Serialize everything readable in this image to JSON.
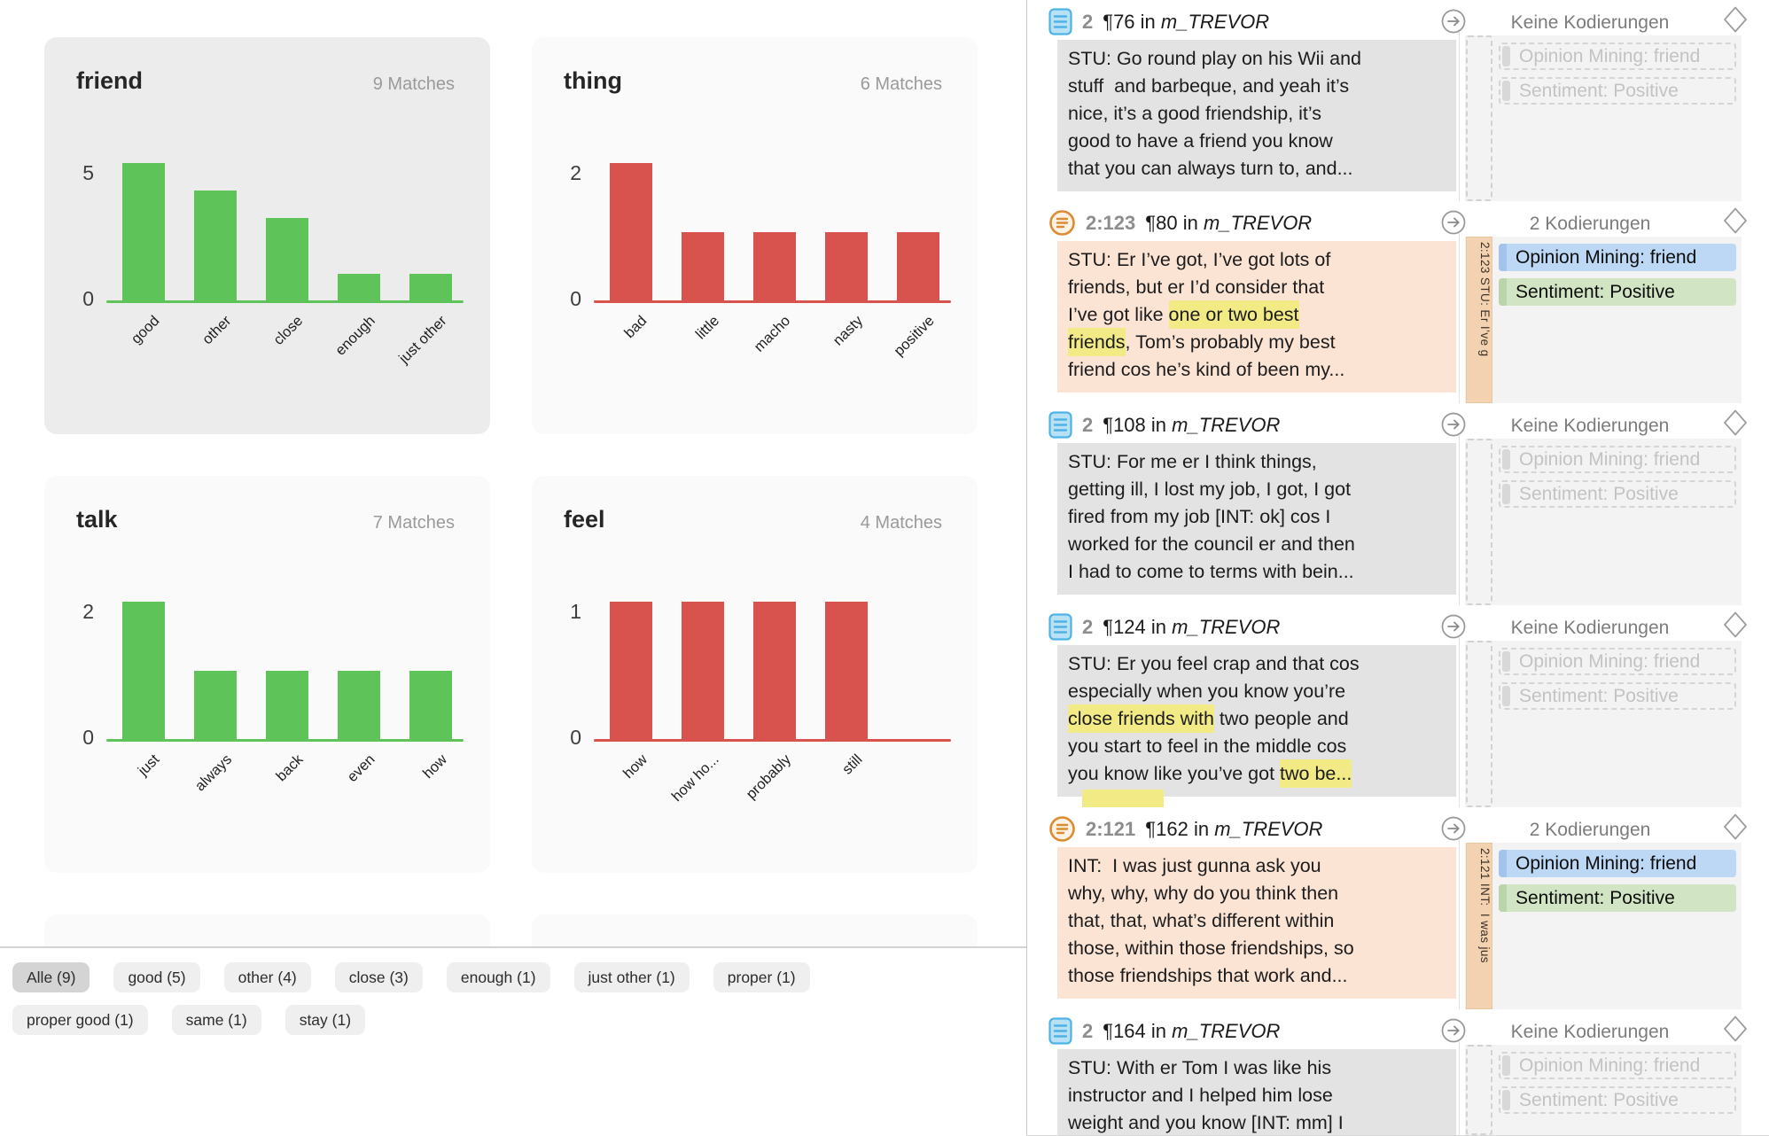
{
  "colors": {
    "green": "#5ec45a",
    "red": "#d9534e",
    "selected_card_bg": "#ececec",
    "card_bg": "#fafafa",
    "highlight_yellow": "#f2ea84",
    "text_block_gray": "#e3e3e3",
    "text_block_peach": "#fbe4d3",
    "code_blue": "#bdd8f4",
    "code_green": "#d1e4c3",
    "strip_tan": "#f3d2b1"
  },
  "chart_data": {
    "type": "bar",
    "legend": "none",
    "grid": false,
    "charts": [
      {
        "title": "friend",
        "matches_label": "9 Matches",
        "color": "green",
        "selected": true,
        "categories": [
          "good",
          "other",
          "close",
          "enough",
          "just other"
        ],
        "values": [
          5,
          4,
          3,
          1,
          1
        ],
        "ylim": [
          0,
          5
        ],
        "yticks": [
          "5",
          "0"
        ]
      },
      {
        "title": "thing",
        "matches_label": "6 Matches",
        "color": "red",
        "selected": false,
        "categories": [
          "bad",
          "little",
          "macho",
          "nasty",
          "positive"
        ],
        "values": [
          2,
          1,
          1,
          1,
          1
        ],
        "ylim": [
          0,
          2
        ],
        "yticks": [
          "2",
          "0"
        ]
      },
      {
        "title": "talk",
        "matches_label": "7 Matches",
        "color": "green",
        "selected": false,
        "categories": [
          "just",
          "always",
          "back",
          "even",
          "how"
        ],
        "values": [
          2,
          1,
          1,
          1,
          1
        ],
        "ylim": [
          0,
          2
        ],
        "yticks": [
          "2",
          "0"
        ]
      },
      {
        "title": "feel",
        "matches_label": "4 Matches",
        "color": "red",
        "selected": false,
        "categories": [
          "how",
          "how ho...",
          "probably",
          "still"
        ],
        "values": [
          1,
          1,
          1,
          1
        ],
        "ylim": [
          0,
          1
        ],
        "yticks": [
          "1",
          "0"
        ]
      }
    ]
  },
  "left_pane": {
    "filter_chips": [
      {
        "label": "Alle (9)",
        "selected": true
      },
      {
        "label": "good (5)",
        "selected": false
      },
      {
        "label": "other (4)",
        "selected": false
      },
      {
        "label": "close (3)",
        "selected": false
      },
      {
        "label": "enough (1)",
        "selected": false
      },
      {
        "label": "just other (1)",
        "selected": false
      },
      {
        "label": "proper (1)",
        "selected": false
      },
      {
        "label": "proper good (1)",
        "selected": false
      },
      {
        "label": "same (1)",
        "selected": false
      },
      {
        "label": "stay (1)",
        "selected": false
      }
    ]
  },
  "right_pane": {
    "segments": [
      {
        "icon": "document-icon",
        "id": "2",
        "paragraph": "¶76",
        "in_word": "in",
        "doc": "m_TREVOR",
        "status": "Keine Kodierungen",
        "coded": false,
        "text_bg": "gray",
        "lines": [
          "STU: Go round play on his Wii and",
          "stuff  and barbeque, and yeah it’s",
          "nice, it’s a good friendship, it’s",
          "good to have a friend you know",
          "that you can always turn to, and..."
        ],
        "codes": [
          {
            "label": "Opinion Mining: friend",
            "style": "ghost"
          },
          {
            "label": "Sentiment: Positive",
            "style": "ghost"
          }
        ]
      },
      {
        "icon": "memo-icon",
        "id": "2:123",
        "paragraph": "¶80",
        "in_word": "in",
        "doc": "m_TREVOR",
        "status": "2 Kodierungen",
        "coded": true,
        "text_bg": "peach",
        "strip_label": "2:123 STU: Er I’ve g",
        "lines": [
          "STU: Er I’ve got, I’ve got lots of",
          "friends, but er I’d consider that",
          [
            [
              "I’ve got like ",
              0
            ],
            [
              "one or two best",
              1
            ]
          ],
          [
            [
              "friends",
              1
            ],
            [
              ", Tom’s probably my best",
              0
            ]
          ],
          "friend cos he’s kind of been my..."
        ],
        "codes": [
          {
            "label": "Opinion Mining: friend",
            "style": "blue"
          },
          {
            "label": "Sentiment: Positive",
            "style": "green"
          }
        ]
      },
      {
        "icon": "document-icon",
        "id": "2",
        "paragraph": "¶108",
        "in_word": "in",
        "doc": "m_TREVOR",
        "status": "Keine Kodierungen",
        "coded": false,
        "text_bg": "gray",
        "lines": [
          "STU: For me er I think things,",
          "getting ill, I lost my job, I got, I got",
          "fired from my job [INT: ok] cos I",
          "worked for the council er and then",
          "I had to come to terms with bein..."
        ],
        "codes": [
          {
            "label": "Opinion Mining: friend",
            "style": "ghost"
          },
          {
            "label": "Sentiment: Positive",
            "style": "ghost"
          }
        ]
      },
      {
        "icon": "document-icon",
        "id": "2",
        "paragraph": "¶124",
        "in_word": "in",
        "doc": "m_TREVOR",
        "status": "Keine Kodierungen",
        "coded": false,
        "text_bg": "gray",
        "partial_highlight": true,
        "lines": [
          "STU: Er you feel crap and that cos",
          "especially when you know you’re",
          [
            [
              "close friends with",
              1
            ],
            [
              " two people and",
              0
            ]
          ],
          "you start to feel in the middle cos",
          [
            [
              "you know like you’ve got ",
              0
            ],
            [
              "two be...",
              1
            ]
          ]
        ],
        "codes": [
          {
            "label": "Opinion Mining: friend",
            "style": "ghost"
          },
          {
            "label": "Sentiment: Positive",
            "style": "ghost"
          }
        ]
      },
      {
        "icon": "memo-icon",
        "id": "2:121",
        "paragraph": "¶162",
        "in_word": "in",
        "doc": "m_TREVOR",
        "status": "2 Kodierungen",
        "coded": true,
        "text_bg": "peach",
        "strip_label": "2:121 INT:  I was jus",
        "lines": [
          "INT:  I was just gunna ask you",
          "why, why, why do you think then",
          "that, that, what’s different within",
          "those, within those friendships, so",
          "those friendships that work and..."
        ],
        "codes": [
          {
            "label": "Opinion Mining: friend",
            "style": "blue"
          },
          {
            "label": "Sentiment: Positive",
            "style": "green"
          }
        ]
      },
      {
        "icon": "document-icon",
        "id": "2",
        "paragraph": "¶164",
        "in_word": "in",
        "doc": "m_TREVOR",
        "status": "Keine Kodierungen",
        "coded": false,
        "text_bg": "gray",
        "lines": [
          "STU: With er Tom I was like his",
          "instructor and I helped him lose",
          "weight and you know [INT: mm] I"
        ],
        "codes": [
          {
            "label": "Opinion Mining: friend",
            "style": "ghost"
          },
          {
            "label": "Sentiment: Positive",
            "style": "ghost"
          }
        ]
      }
    ]
  }
}
